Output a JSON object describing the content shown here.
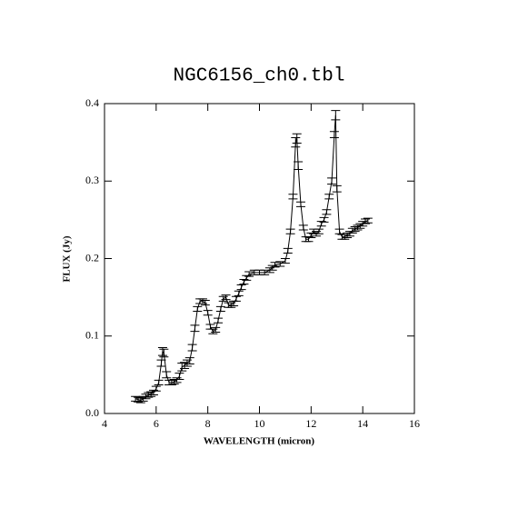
{
  "chart_data": {
    "type": "line",
    "title": "NGC6156_ch0.tbl",
    "xlabel": "WAVELENGTH (micron)",
    "ylabel": "FLUX (Jy)",
    "x": [
      5.2,
      5.3,
      5.4,
      5.5,
      5.6,
      5.7,
      5.8,
      5.9,
      6.0,
      6.1,
      6.2,
      6.25,
      6.3,
      6.4,
      6.5,
      6.6,
      6.7,
      6.8,
      6.9,
      7.0,
      7.1,
      7.2,
      7.3,
      7.4,
      7.5,
      7.6,
      7.7,
      7.8,
      7.9,
      8.0,
      8.1,
      8.2,
      8.3,
      8.4,
      8.5,
      8.6,
      8.7,
      8.8,
      8.9,
      9.0,
      9.1,
      9.2,
      9.3,
      9.4,
      9.5,
      9.6,
      9.8,
      10.0,
      10.2,
      10.4,
      10.5,
      10.6,
      10.8,
      11.0,
      11.1,
      11.2,
      11.3,
      11.4,
      11.45,
      11.5,
      11.6,
      11.7,
      11.8,
      11.9,
      12.0,
      12.1,
      12.2,
      12.3,
      12.4,
      12.5,
      12.6,
      12.7,
      12.8,
      12.9,
      12.95,
      13.0,
      13.1,
      13.2,
      13.3,
      13.4,
      13.5,
      13.6,
      13.7,
      13.8,
      13.9,
      14.0,
      14.1,
      14.2
    ],
    "series": [
      {
        "color": "#000000",
        "values": [
          0.019,
          0.018,
          0.017,
          0.019,
          0.022,
          0.024,
          0.025,
          0.027,
          0.032,
          0.04,
          0.065,
          0.08,
          0.078,
          0.05,
          0.04,
          0.04,
          0.041,
          0.043,
          0.048,
          0.06,
          0.062,
          0.065,
          0.068,
          0.085,
          0.11,
          0.135,
          0.145,
          0.145,
          0.143,
          0.13,
          0.112,
          0.106,
          0.108,
          0.12,
          0.135,
          0.148,
          0.15,
          0.14,
          0.14,
          0.142,
          0.148,
          0.155,
          0.163,
          0.17,
          0.175,
          0.18,
          0.182,
          0.182,
          0.182,
          0.185,
          0.188,
          0.192,
          0.193,
          0.197,
          0.21,
          0.235,
          0.28,
          0.35,
          0.355,
          0.32,
          0.27,
          0.24,
          0.225,
          0.225,
          0.23,
          0.235,
          0.232,
          0.235,
          0.245,
          0.25,
          0.26,
          0.28,
          0.3,
          0.36,
          0.385,
          0.29,
          0.235,
          0.228,
          0.228,
          0.23,
          0.232,
          0.236,
          0.238,
          0.24,
          0.242,
          0.245,
          0.248,
          0.249
        ],
        "errors": [
          0.003,
          0.003,
          0.003,
          0.003,
          0.003,
          0.003,
          0.003,
          0.003,
          0.003,
          0.003,
          0.004,
          0.005,
          0.005,
          0.004,
          0.003,
          0.003,
          0.003,
          0.003,
          0.004,
          0.005,
          0.004,
          0.004,
          0.004,
          0.004,
          0.004,
          0.003,
          0.003,
          0.003,
          0.003,
          0.003,
          0.003,
          0.003,
          0.003,
          0.003,
          0.003,
          0.003,
          0.003,
          0.003,
          0.003,
          0.003,
          0.003,
          0.003,
          0.003,
          0.003,
          0.003,
          0.003,
          0.003,
          0.003,
          0.003,
          0.003,
          0.003,
          0.003,
          0.003,
          0.003,
          0.003,
          0.003,
          0.003,
          0.006,
          0.006,
          0.005,
          0.003,
          0.003,
          0.003,
          0.003,
          0.003,
          0.003,
          0.003,
          0.003,
          0.003,
          0.003,
          0.003,
          0.003,
          0.004,
          0.004,
          0.006,
          0.004,
          0.003,
          0.003,
          0.003,
          0.003,
          0.003,
          0.003,
          0.003,
          0.003,
          0.003,
          0.003,
          0.003,
          0.003
        ]
      }
    ],
    "xlim": [
      4,
      16
    ],
    "xticks": [
      4,
      6,
      8,
      10,
      12,
      14,
      16
    ],
    "ylim": [
      0,
      0.4
    ],
    "yticks": [
      {
        "value": 0,
        "label": "0.0"
      },
      0.1,
      0.2,
      0.3,
      0.4
    ]
  }
}
